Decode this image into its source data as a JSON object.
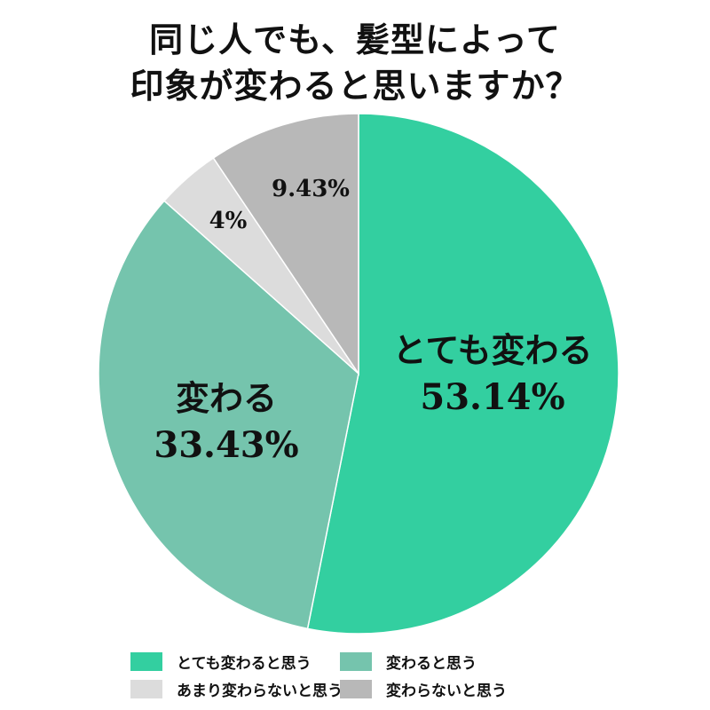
{
  "title": {
    "line1": "同じ人でも、髪型によって",
    "line2": "印象が変わると思いますか？"
  },
  "chart_data": {
    "type": "pie",
    "title": "同じ人でも、髪型によって印象が変わると思いますか？",
    "start_angle": "12 o'clock, clockwise",
    "categories": [
      "とても変わると思う",
      "変わると思う",
      "あまり変わらないと思う",
      "変わらないと思う"
    ],
    "values": [
      53.14,
      33.43,
      4,
      9.43
    ],
    "unit": "%",
    "colors": [
      "#33cfa0",
      "#75c4ad",
      "#dcdcdc",
      "#b8b8b8"
    ],
    "slice_labels": [
      {
        "name": "とても変わる",
        "pct": "53.14%"
      },
      {
        "name": "変わる",
        "pct": "33.43%"
      },
      {
        "name": "",
        "pct": "4%"
      },
      {
        "name": "",
        "pct": "9.43%"
      }
    ],
    "legend_position": "bottom"
  },
  "legend": [
    {
      "label": "とても変わると思う",
      "color": "#33cfa0"
    },
    {
      "label": "変わると思う",
      "color": "#75c4ad"
    },
    {
      "label": "あまり変わらないと思う",
      "color": "#dcdcdc"
    },
    {
      "label": "変わらないと思う",
      "color": "#b8b8b8"
    }
  ]
}
